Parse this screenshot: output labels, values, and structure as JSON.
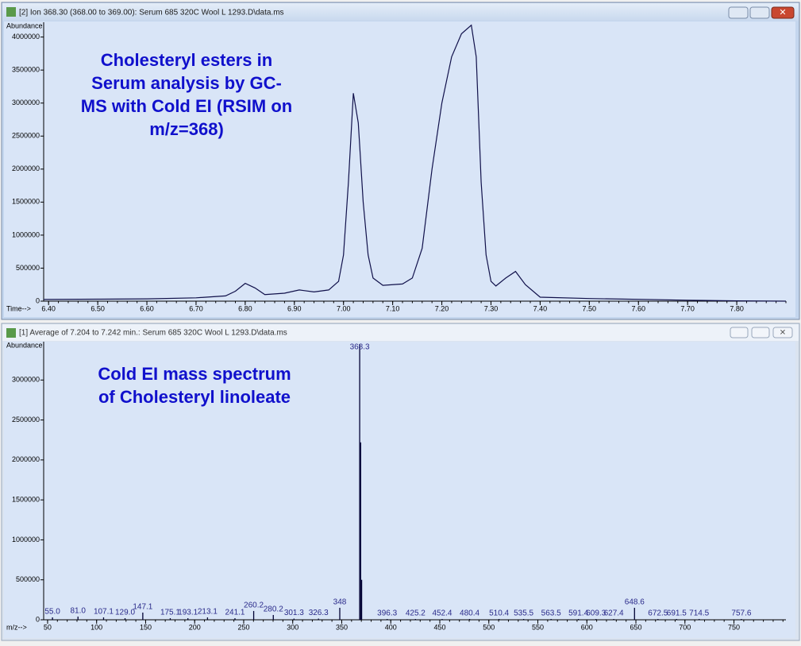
{
  "windows": [
    {
      "title": "[2] Ion 368.30 (368.00 to 369.00): Serum 685 320C Wool L 1293.D\\data.ms"
    },
    {
      "title": "[1] Average of 7.204 to 7.242 min.: Serum 685 320C Wool L 1293.D\\data.ms"
    }
  ],
  "chart_data": [
    {
      "type": "line",
      "annotation": [
        "Cholesteryl esters in",
        "Serum analysis by GC-",
        "MS with Cold EI (RSIM on",
        "m/z=368)"
      ],
      "y_label": "Abundance",
      "x_label": "Time-->",
      "color": "#10104a",
      "xlim": [
        6.39,
        7.9
      ],
      "ylim": [
        0,
        4200000
      ],
      "xticks": [
        {
          "value": 6.4,
          "label": "6.40"
        },
        {
          "value": 6.5,
          "label": "6.50"
        },
        {
          "value": 6.6,
          "label": "6.60"
        },
        {
          "value": 6.7,
          "label": "6.70"
        },
        {
          "value": 6.8,
          "label": "6.80"
        },
        {
          "value": 6.9,
          "label": "6.90"
        },
        {
          "value": 7.0,
          "label": "7.00"
        },
        {
          "value": 7.1,
          "label": "7.10"
        },
        {
          "value": 7.2,
          "label": "7.20"
        },
        {
          "value": 7.3,
          "label": "7.30"
        },
        {
          "value": 7.4,
          "label": "7.40"
        },
        {
          "value": 7.5,
          "label": "7.50"
        },
        {
          "value": 7.6,
          "label": "7.60"
        },
        {
          "value": 7.7,
          "label": "7.70"
        },
        {
          "value": 7.8,
          "label": "7.80"
        }
      ],
      "yticks": [
        0,
        500000,
        1000000,
        1500000,
        2000000,
        2500000,
        3000000,
        3500000,
        4000000
      ],
      "x": [
        6.39,
        6.5,
        6.6,
        6.7,
        6.76,
        6.78,
        6.8,
        6.82,
        6.84,
        6.88,
        6.91,
        6.94,
        6.97,
        6.99,
        7.0,
        7.01,
        7.02,
        7.03,
        7.04,
        7.05,
        7.06,
        7.08,
        7.12,
        7.14,
        7.16,
        7.18,
        7.2,
        7.22,
        7.24,
        7.26,
        7.27,
        7.28,
        7.29,
        7.3,
        7.31,
        7.33,
        7.35,
        7.37,
        7.4,
        7.5,
        7.7,
        7.8,
        7.9
      ],
      "values": [
        25000,
        30000,
        35000,
        50000,
        80000,
        150000,
        270000,
        200000,
        100000,
        120000,
        170000,
        140000,
        170000,
        300000,
        700000,
        1800000,
        3150000,
        2700000,
        1500000,
        700000,
        350000,
        240000,
        260000,
        350000,
        800000,
        2000000,
        3000000,
        3700000,
        4050000,
        4180000,
        3700000,
        1800000,
        700000,
        300000,
        230000,
        350000,
        450000,
        250000,
        60000,
        40000,
        15000,
        5000,
        0
      ]
    },
    {
      "type": "bar",
      "annotation": [
        "Cold EI mass spectrum",
        "of Cholesteryl linoleate"
      ],
      "y_label": "Abundance",
      "x_label": "m/z-->",
      "color": "#000033",
      "xlim": [
        46,
        803
      ],
      "ylim": [
        0,
        3460000
      ],
      "xticks": [
        50,
        100,
        150,
        200,
        250,
        300,
        350,
        400,
        450,
        500,
        550,
        600,
        650,
        700,
        750
      ],
      "yticks": [
        0,
        500000,
        1000000,
        1500000,
        2000000,
        2500000,
        3000000
      ],
      "x": [
        55.0,
        81.0,
        107.1,
        129.0,
        147.1,
        175.1,
        193.1,
        213.1,
        241.1,
        260.2,
        280.2,
        301.3,
        326.3,
        348,
        368.3,
        369.3,
        370.3,
        396.3,
        425.2,
        452.4,
        480.4,
        510.4,
        535.5,
        563.5,
        591.4,
        609.3,
        627.4,
        648.6,
        672.5,
        691.5,
        714.5,
        757.6
      ],
      "x_labels": [
        "55.0",
        "81.0",
        "107.1",
        "129.0",
        "147.1",
        "175.1",
        "193.1",
        "213.1",
        "241.1",
        "260.2",
        "280.2",
        "301.3",
        "326.3",
        "348",
        "368.3",
        null,
        null,
        "396.3",
        "425.2",
        "452.4",
        "480.4",
        "510.4",
        "535.5",
        "563.5",
        "591.4",
        "609.3",
        "627.4",
        "648.6",
        "672.5",
        "691.5",
        "714.5",
        "757.6"
      ],
      "values": [
        30000,
        40000,
        30000,
        20000,
        90000,
        20000,
        20000,
        30000,
        20000,
        110000,
        60000,
        15000,
        15000,
        150000,
        3450000,
        2220000,
        500000,
        10000,
        10000,
        10000,
        10000,
        10000,
        10000,
        10000,
        10000,
        10000,
        10000,
        150000,
        10000,
        10000,
        10000,
        10000
      ]
    }
  ]
}
